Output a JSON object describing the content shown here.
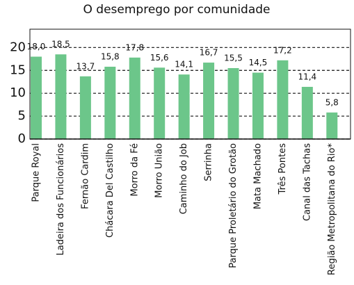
{
  "chart_data": {
    "type": "bar",
    "title": "O desemprego por comunidade",
    "categories": [
      "Parque Royal",
      "Ladeira dos Funcionários",
      "Fernão Cardim",
      "Chácara Del Castilho",
      "Morro da Fé",
      "Morro União",
      "Caminho do Job",
      "Serrinha",
      "Parque Proletário do Grotão",
      "Mata Machado",
      "Três Pontes",
      "Canal das Tachas",
      "Região Metropolitana do Rio*"
    ],
    "values": [
      18.0,
      18.5,
      13.7,
      15.8,
      17.8,
      15.6,
      14.1,
      16.7,
      15.5,
      14.5,
      17.2,
      11.4,
      5.8
    ],
    "value_labels": [
      "18,0",
      "18,5",
      "13,7",
      "15,8",
      "17,8",
      "15,6",
      "14,1",
      "16,7",
      "15,5",
      "14,5",
      "17,2",
      "11,4",
      "5,8"
    ],
    "color": "#6cc68a",
    "ylim": [
      0,
      24
    ],
    "yticks": [
      0,
      5,
      10,
      15,
      20
    ],
    "grid": true
  }
}
